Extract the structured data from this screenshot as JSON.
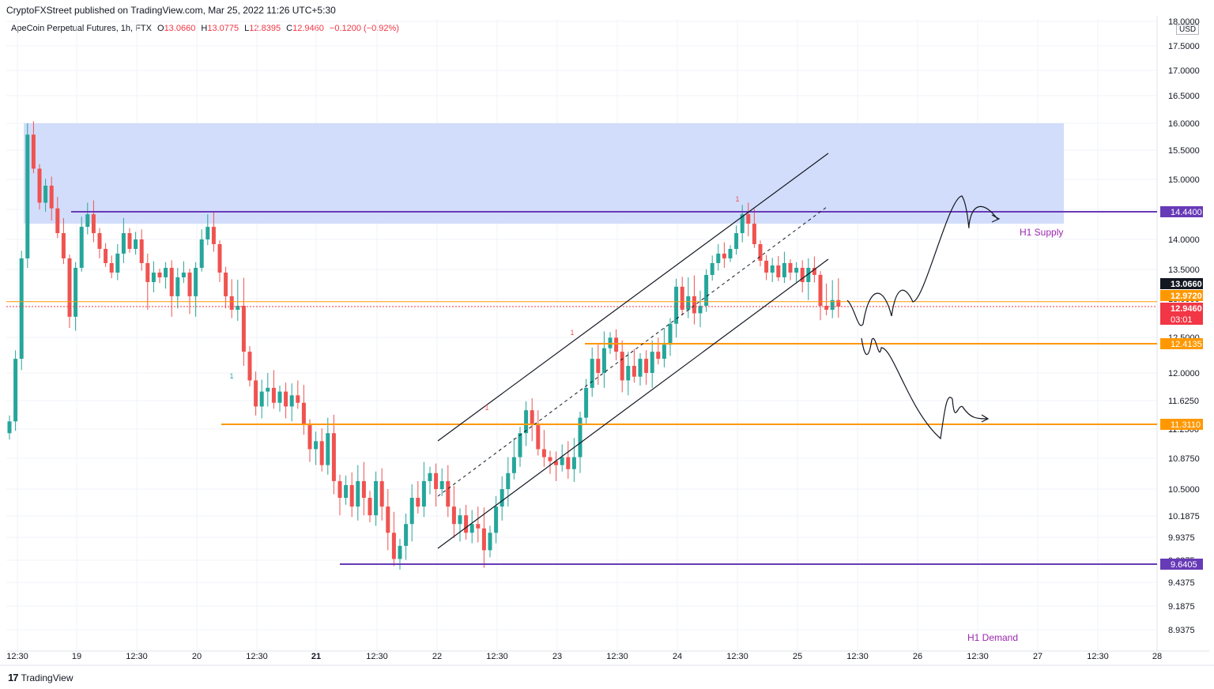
{
  "header": {
    "publisher_line": "CryptoFXStreet published on TradingView.com, Mar 25, 2022 11:26 UTC+5:30",
    "symbol": "ApeCoin Perpetual Futures, 1h, FTX",
    "o_label": "O",
    "o_value": "13.0660",
    "h_label": "H",
    "h_value": "13.0775",
    "l_label": "L",
    "l_value": "12.8395",
    "c_label": "C",
    "c_value": "12.9460",
    "change": "−0.1200 (−0.92%)"
  },
  "footer": {
    "brand": "TradingView",
    "logo": "17"
  },
  "colors": {
    "up": "#26a69a",
    "down": "#ef5350",
    "supply_zone": "#cdd9fb",
    "purple_line": "#673ab7",
    "orange_line": "#ff9800",
    "channel": "#131722",
    "label_text": "#9c27b0"
  },
  "chart_data": {
    "type": "candlestick",
    "currency": "USD",
    "y_ticks": [
      "18.0000",
      "17.5000",
      "17.0000",
      "16.5000",
      "16.0000",
      "15.5000",
      "15.0000",
      "14.5000",
      "14.0000",
      "13.5000",
      "13.0000",
      "12.5000",
      "12.0000",
      "11.6250",
      "11.2500",
      "10.8750",
      "10.5000",
      "10.1875",
      "9.9375",
      "9.6875",
      "9.4375",
      "9.1875",
      "8.9375"
    ],
    "x_ticks": [
      "12:30",
      "19",
      "12:30",
      "20",
      "12:30",
      "21",
      "12:30",
      "22",
      "12:30",
      "23",
      "12:30",
      "24",
      "12:30",
      "25",
      "12:30",
      "26",
      "12:30",
      "27",
      "12:30",
      "28"
    ],
    "supply_zone": {
      "top": 16.0,
      "bottom": 14.25,
      "label": "H1 Supply"
    },
    "demand_label": "H1 Demand",
    "horizontal_levels": [
      {
        "value": 14.44,
        "label": "14.4400",
        "color": "purple"
      },
      {
        "value": 12.4135,
        "label": "12.4135",
        "color": "orange"
      },
      {
        "value": 11.311,
        "label": "11.3110",
        "color": "orange"
      },
      {
        "value": 9.6405,
        "label": "9.6405",
        "color": "purple"
      }
    ],
    "price_labels": [
      {
        "value": 13.066,
        "label": "13.0660",
        "color": "#131722"
      },
      {
        "value": 12.972,
        "label": "12.9720",
        "color": "#ff9800"
      },
      {
        "value": 12.946,
        "label": "12.9460",
        "sub": "03:01",
        "color": "#f23645"
      }
    ],
    "closes": [
      11.35,
      12.2,
      13.6,
      15.8,
      15.2,
      14.6,
      14.9,
      14.5,
      14.1,
      13.6,
      12.8,
      13.4,
      14.2,
      14.4,
      14.1,
      13.8,
      13.5,
      13.3,
      13.7,
      14.1,
      13.8,
      14.0,
      13.5,
      13.1,
      13.3,
      13.2,
      13.4,
      13.0,
      13.2,
      13.3,
      13.0,
      13.4,
      14.0,
      14.2,
      13.9,
      13.3,
      13.0,
      12.9,
      12.95,
      12.3,
      11.9,
      11.55,
      11.75,
      11.8,
      11.6,
      11.75,
      11.55,
      11.7,
      11.6,
      11.3,
      11.0,
      11.1,
      10.8,
      11.2,
      10.6,
      10.4,
      10.55,
      10.3,
      10.6,
      10.4,
      10.2,
      10.6,
      10.3,
      10.0,
      9.7,
      9.85,
      10.1,
      10.4,
      10.3,
      10.6,
      10.7,
      10.5,
      10.6,
      10.3,
      10.1,
      10.2,
      10.0,
      10.1,
      10.05,
      9.8,
      10.0,
      10.3,
      10.5,
      10.7,
      10.9,
      11.2,
      11.5,
      11.3,
      11.0,
      10.9,
      10.85,
      10.8,
      10.9,
      10.75,
      10.9,
      11.4,
      11.8,
      12.2,
      12.0,
      12.35,
      12.5,
      12.3,
      11.9,
      12.1,
      11.95,
      12.2,
      12.0,
      12.3,
      12.2,
      12.4,
      12.7,
      13.05,
      12.9,
      13.0,
      12.85,
      12.95,
      13.25,
      13.5,
      13.7,
      13.6,
      13.8,
      14.1,
      14.4,
      14.25,
      13.9,
      13.55,
      13.3,
      13.45,
      13.2,
      13.5,
      13.3,
      13.4,
      13.1,
      13.4,
      13.25,
      12.95,
      12.9,
      12.98,
      12.946
    ]
  }
}
